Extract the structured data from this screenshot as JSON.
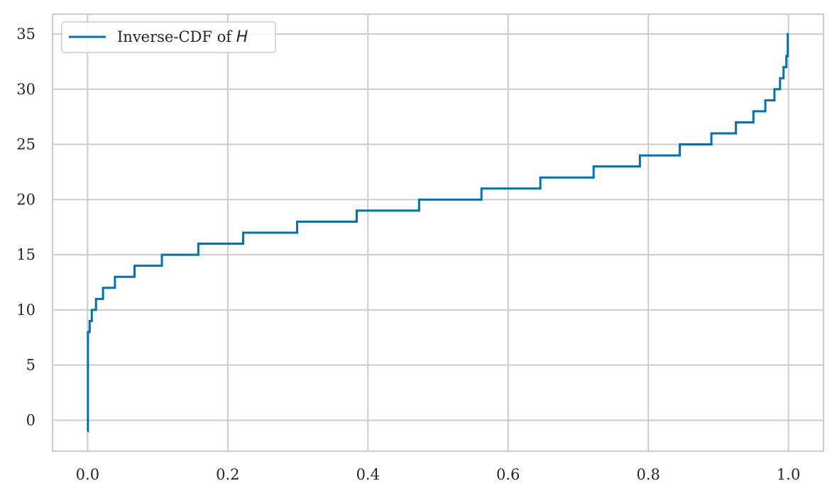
{
  "chart_data": {
    "type": "line",
    "title": "",
    "xlabel": "",
    "ylabel": "",
    "xlim": [
      -0.05,
      1.05
    ],
    "ylim": [
      -2.8,
      36.8
    ],
    "grid": true,
    "legend_position": "top-left",
    "x_ticks": [
      "0.0",
      "0.2",
      "0.4",
      "0.6",
      "0.8",
      "1.0"
    ],
    "x_tick_values": [
      0.0,
      0.2,
      0.4,
      0.6,
      0.8,
      1.0
    ],
    "y_ticks": [
      "0",
      "5",
      "10",
      "15",
      "20",
      "25",
      "30",
      "35"
    ],
    "y_tick_values": [
      0,
      5,
      10,
      15,
      20,
      25,
      30,
      35
    ],
    "series": [
      {
        "name_prefix": "Inverse-CDF of ",
        "name_symbol": "H",
        "color": "#0072b2",
        "steps": [
          {
            "x": 0.0,
            "y": -1
          },
          {
            "x": 0.0005,
            "y": 8
          },
          {
            "x": 0.003,
            "y": 9
          },
          {
            "x": 0.006,
            "y": 10
          },
          {
            "x": 0.012,
            "y": 11
          },
          {
            "x": 0.022,
            "y": 12
          },
          {
            "x": 0.039,
            "y": 13
          },
          {
            "x": 0.067,
            "y": 14
          },
          {
            "x": 0.106,
            "y": 15
          },
          {
            "x": 0.158,
            "y": 16
          },
          {
            "x": 0.222,
            "y": 17
          },
          {
            "x": 0.299,
            "y": 18
          },
          {
            "x": 0.384,
            "y": 19
          },
          {
            "x": 0.473,
            "y": 20
          },
          {
            "x": 0.562,
            "y": 21
          },
          {
            "x": 0.646,
            "y": 22
          },
          {
            "x": 0.722,
            "y": 23
          },
          {
            "x": 0.788,
            "y": 24
          },
          {
            "x": 0.845,
            "y": 25
          },
          {
            "x": 0.89,
            "y": 26
          },
          {
            "x": 0.925,
            "y": 27
          },
          {
            "x": 0.95,
            "y": 28
          },
          {
            "x": 0.967,
            "y": 29
          },
          {
            "x": 0.98,
            "y": 30
          },
          {
            "x": 0.988,
            "y": 31
          },
          {
            "x": 0.993,
            "y": 32
          },
          {
            "x": 0.997,
            "y": 33
          },
          {
            "x": 0.999,
            "y": 35
          }
        ],
        "x_end": 1.0
      }
    ]
  }
}
